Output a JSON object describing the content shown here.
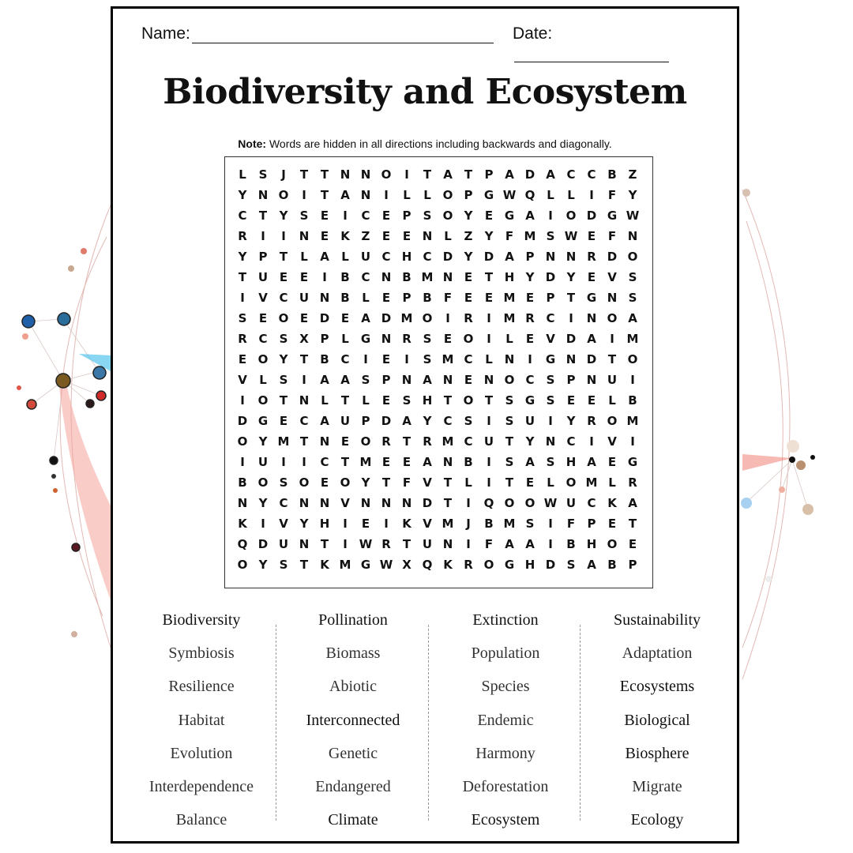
{
  "header": {
    "name_label": "Name:",
    "date_label": "Date:"
  },
  "title": "Biodiversity and Ecosystem",
  "note": {
    "bold": "Note:",
    "text": " Words are hidden in all directions including backwards and diagonally."
  },
  "grid": [
    "LSJTTNNOITATPADACCBZ",
    "YNOITANILLOPGWQLLIFY",
    "CTYSEICEPSOYEGAIODGW",
    "RIINEKZEENLZYFMSWEFN",
    "YPTLALUCHCDYDAPNNRDO",
    "TUEEIBCNBMNETHYDYEVS",
    "IVCUNBLEPBFEEMEPTGNS",
    "SEOEDEADMOIRIMRCINOA",
    "RCSXPLGNRSEOILEVDAIM",
    "EOYTBCIEISMCLNIGNDTO",
    "VLSIAASPNANENOCSPNUI",
    "IOTNLTLESHTOTSGSEELB",
    "DGECAUPDAYCSISUIYROM",
    "OYMTNEORTRMCUTYNCIVI",
    "IUIICTMEEANBISASHAEG",
    "BOSOEOYTFVTLITELOMLR",
    "NYCNNVNNNDTIQOOWUCKA",
    "KIVYHIEIKVMJBMSIFPET",
    "QDUNTIWRTUNIFAAIBHOE",
    "OYSTKMGWXQKROGHDSABP"
  ],
  "word_columns": [
    [
      "Biodiversity",
      "Symbiosis",
      "Resilience",
      "Habitat",
      "Evolution",
      "Interdependence",
      "Balance"
    ],
    [
      "Pollination",
      "Biomass",
      "Abiotic",
      "Interconnected",
      "Genetic",
      "Endangered",
      "Climate"
    ],
    [
      "Extinction",
      "Population",
      "Species",
      "Endemic",
      "Harmony",
      "Deforestation",
      "Ecosystem"
    ],
    [
      "Sustainability",
      "Adaptation",
      "Ecosystems",
      "Biological",
      "Biosphere",
      "Migrate",
      "Ecology"
    ]
  ],
  "colors": {
    "ink": "#111111",
    "border": "#000000",
    "accent_red": "#e8443a",
    "accent_blue": "#2a6cb0"
  }
}
